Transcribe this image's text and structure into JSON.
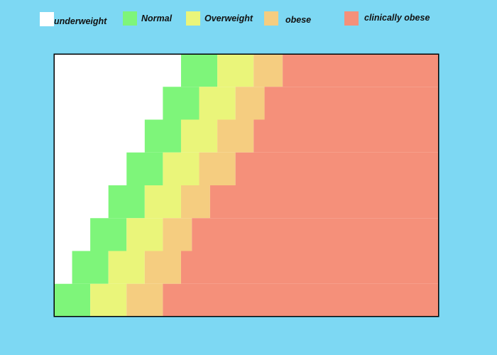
{
  "chart_data": {
    "type": "heatmap",
    "legend": [
      {
        "label": "underweight",
        "color": "#ffffff"
      },
      {
        "label": "Normal",
        "color": "#7ef57a"
      },
      {
        "label": "Overweight",
        "color": "#eaf57a"
      },
      {
        "label": "obese",
        "color": "#f5cd80"
      },
      {
        "label": "clinically obese",
        "color": "#f5907a"
      }
    ],
    "rows": [
      {
        "underweight": 7,
        "normal": 2,
        "overweight": 2,
        "obese": 1.6
      },
      {
        "underweight": 6,
        "normal": 2,
        "overweight": 2,
        "obese": 1.6
      },
      {
        "underweight": 5,
        "normal": 2,
        "overweight": 2,
        "obese": 2
      },
      {
        "underweight": 4,
        "normal": 2,
        "overweight": 2,
        "obese": 2
      },
      {
        "underweight": 3,
        "normal": 2,
        "overweight": 2,
        "obese": 1.6
      },
      {
        "underweight": 2,
        "normal": 2,
        "overweight": 2,
        "obese": 1.6
      },
      {
        "underweight": 1,
        "normal": 2,
        "overweight": 2,
        "obese": 2
      },
      {
        "underweight": 0,
        "normal": 2,
        "overweight": 2,
        "obese": 2
      }
    ],
    "total_columns": 21.2,
    "xlabel": "",
    "ylabel": "",
    "plot_background": "#ffffff",
    "page_background": "#7dd8f3"
  }
}
